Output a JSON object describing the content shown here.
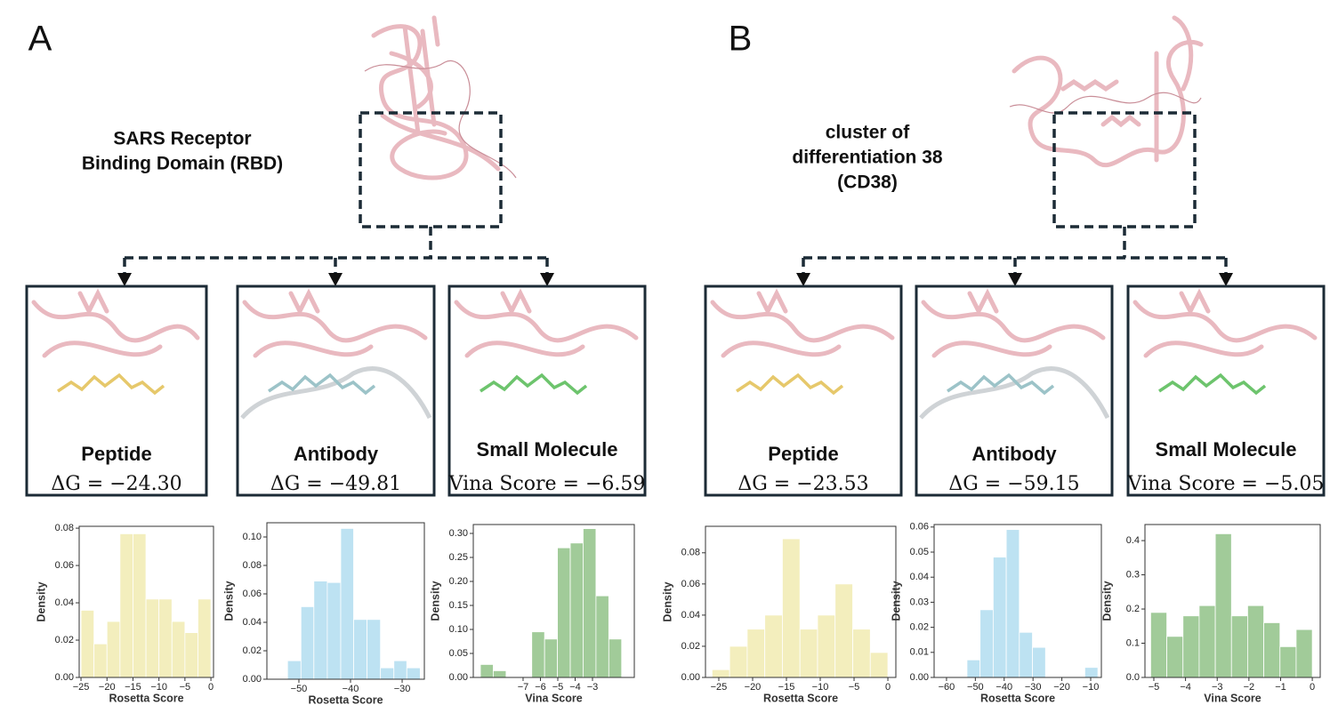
{
  "panels": [
    {
      "label": "A",
      "target": [
        "SARS Receptor",
        "Binding Domain (RBD)"
      ],
      "boxes": [
        {
          "name": "Peptide",
          "score": "ΔG = −24.30"
        },
        {
          "name": "Antibody",
          "score": "ΔG = −49.81"
        },
        {
          "name": "Small Molecule",
          "score": "Vina Score = −6.59"
        }
      ]
    },
    {
      "label": "B",
      "target": [
        "cluster of",
        "differentiation 38",
        "(CD38)"
      ],
      "boxes": [
        {
          "name": "Peptide",
          "score": "ΔG = −23.53"
        },
        {
          "name": "Antibody",
          "score": "ΔG = −59.15"
        },
        {
          "name": "Small Molecule",
          "score": "Vina Score = −5.05"
        }
      ]
    }
  ],
  "chart_data": [
    {
      "type": "histogram",
      "xlabel": "Rosetta Score",
      "ylabel": "Density",
      "color": "#f3eebd",
      "bins": [
        -25,
        -22.5,
        -20,
        -17.5,
        -15,
        -12.5,
        -10,
        -7.5,
        -5,
        -2.5,
        0
      ],
      "values": [
        0.036,
        0.018,
        0.03,
        0.077,
        0.077,
        0.042,
        0.042,
        0.03,
        0.024,
        0.042
      ],
      "xlim": [
        -25.35,
        0.5
      ],
      "ylim": [
        0,
        0.081
      ],
      "xticks": [
        {
          "value": -25,
          "label": "−25"
        },
        {
          "value": -20,
          "label": "−20"
        },
        {
          "value": -15,
          "label": "−15"
        },
        {
          "value": -10,
          "label": "−10"
        },
        {
          "value": -5,
          "label": "−5"
        },
        0
      ],
      "yticks": [
        {
          "value": 0,
          "label": "0.00"
        },
        0.02,
        0.04,
        0.06,
        0.08
      ]
    },
    {
      "type": "histogram",
      "xlabel": "Rosetta Score",
      "ylabel": "Density",
      "color": "#bde2f2",
      "bins": [
        -52.2,
        -49.6,
        -47.1,
        -44.5,
        -41.9,
        -39.4,
        -36.8,
        -34.2,
        -31.6,
        -29.1,
        -26.5
      ],
      "values": [
        0.013,
        0.051,
        0.069,
        0.068,
        0.106,
        0.042,
        0.042,
        0.008,
        0.013,
        0.008
      ],
      "xlim": [
        -56.2,
        -25.7
      ],
      "ylim": [
        0,
        0.11
      ],
      "xticks": [
        {
          "value": -50,
          "label": "−50"
        },
        {
          "value": -40,
          "label": "−40"
        },
        {
          "value": -30,
          "label": "−30"
        }
      ],
      "yticks": [
        {
          "value": 0,
          "label": "0.00"
        },
        0.02,
        0.04,
        0.06,
        0.08,
        {
          "value": 0.1,
          "label": "0.10"
        }
      ]
    },
    {
      "type": "histogram",
      "xlabel": "Vina Score",
      "ylabel": "Density",
      "color": "#a1cb99",
      "bins": [
        -9.46,
        -8.72,
        -7.98,
        -7.24,
        -6.5,
        -5.76,
        -5.02,
        -4.28,
        -3.54,
        -2.8,
        -2.06,
        -1.32
      ],
      "values": [
        0.027,
        0.014,
        0,
        0,
        0.095,
        0.08,
        0.27,
        0.28,
        0.31,
        0.17,
        0.08
      ],
      "xlim": [
        -9.87,
        -0.59
      ],
      "ylim": [
        0,
        0.3185
      ],
      "xticks": [
        {
          "value": -7,
          "label": "−7"
        },
        {
          "value": -6,
          "label": "−6"
        },
        {
          "value": -5,
          "label": "−5"
        },
        {
          "value": -4,
          "label": "−4"
        },
        {
          "value": -3,
          "label": "−3"
        }
      ],
      "yticks": [
        {
          "value": 0,
          "label": "0.00"
        },
        0.05,
        {
          "value": 0.1,
          "label": "0.10"
        },
        0.15,
        {
          "value": 0.2,
          "label": "0.20"
        },
        0.25,
        {
          "value": 0.3,
          "label": "0.30"
        }
      ]
    },
    {
      "type": "histogram",
      "xlabel": "Rosetta Score",
      "ylabel": "Density",
      "color": "#f3eebd",
      "bins": [
        -26,
        -23.4,
        -20.8,
        -18.2,
        -15.6,
        -13,
        -10.4,
        -7.8,
        -5.2,
        -2.6,
        0
      ],
      "values": [
        0.005,
        0.02,
        0.031,
        0.04,
        0.089,
        0.031,
        0.04,
        0.06,
        0.031,
        0.016
      ],
      "xlim": [
        -26.97,
        1.18
      ],
      "ylim": [
        0,
        0.097
      ],
      "xticks": [
        {
          "value": -25,
          "label": "−25"
        },
        {
          "value": -20,
          "label": "−20"
        },
        {
          "value": -15,
          "label": "−15"
        },
        {
          "value": -10,
          "label": "−10"
        },
        {
          "value": -5,
          "label": "−5"
        },
        0
      ],
      "yticks": [
        {
          "value": 0,
          "label": "0.00"
        },
        0.02,
        0.04,
        0.06,
        0.08
      ]
    },
    {
      "type": "histogram",
      "xlabel": "Rosetta Score",
      "ylabel": "Density",
      "color": "#bde2f2",
      "bins": [
        -52.9,
        -48.36,
        -43.82,
        -39.28,
        -34.74,
        -30.2,
        -25.66,
        -21.12,
        -16.58,
        -12.04,
        -7.5
      ],
      "values": [
        0.007,
        0.027,
        0.048,
        0.059,
        0.018,
        0.012,
        0,
        0,
        0,
        0.004
      ],
      "xlim": [
        -64.3,
        -6.3
      ],
      "ylim": [
        0,
        0.061
      ],
      "xticks": [
        {
          "value": -60,
          "label": "−60"
        },
        {
          "value": -50,
          "label": "−50"
        },
        {
          "value": -40,
          "label": "−40"
        },
        {
          "value": -30,
          "label": "−30"
        },
        {
          "value": -20,
          "label": "−20"
        },
        {
          "value": -10,
          "label": "−10"
        }
      ],
      "yticks": [
        {
          "value": 0,
          "label": "0.00"
        },
        0.01,
        0.02,
        0.03,
        0.04,
        0.05,
        0.06
      ]
    },
    {
      "type": "histogram",
      "xlabel": "Vina Score",
      "ylabel": "Density",
      "color": "#a1cb99",
      "bins": [
        -5.1,
        -4.59,
        -4.08,
        -3.57,
        -3.06,
        -2.55,
        -2.04,
        -1.53,
        -1.02,
        -0.51,
        0
      ],
      "values": [
        0.19,
        0.12,
        0.18,
        0.21,
        0.42,
        0.18,
        0.21,
        0.16,
        0.09,
        0.14
      ],
      "xlim": [
        -5.28,
        0.25
      ],
      "ylim": [
        0,
        0.447
      ],
      "xticks": [
        {
          "value": -5,
          "label": "−5"
        },
        {
          "value": -4,
          "label": "−4"
        },
        {
          "value": -3,
          "label": "−3"
        },
        {
          "value": -2,
          "label": "−2"
        },
        {
          "value": -1,
          "label": "−1"
        },
        0
      ],
      "yticks": [
        {
          "value": 0,
          "label": "0.0"
        },
        0.1,
        0.2,
        0.3,
        0.4
      ]
    }
  ]
}
